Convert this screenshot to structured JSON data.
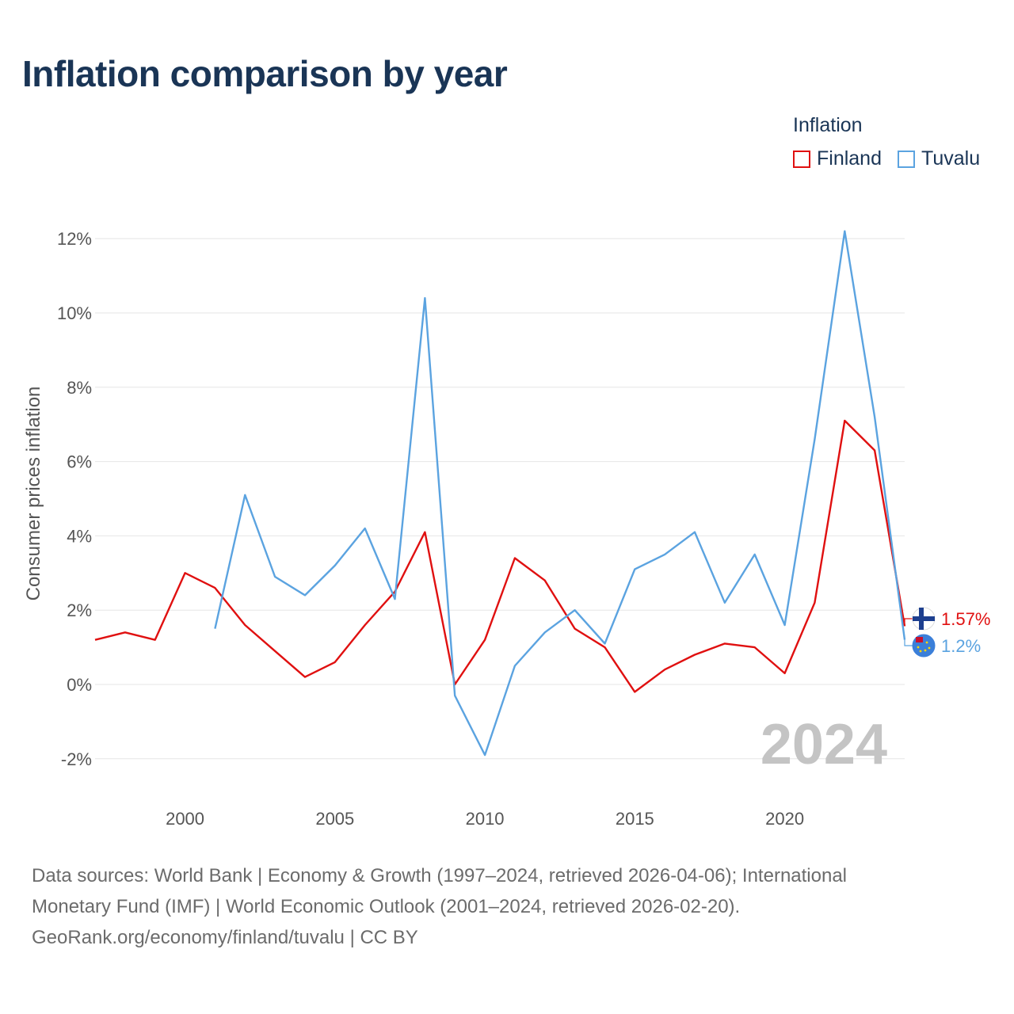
{
  "title": "Inflation comparison by year",
  "legend": {
    "title": "Inflation",
    "items": [
      {
        "name": "Finland",
        "color": "#e01010"
      },
      {
        "name": "Tuvalu",
        "color": "#5ba3e0"
      }
    ]
  },
  "chart_data": {
    "type": "line",
    "title": "Inflation comparison by year",
    "xlabel": "",
    "ylabel": "Consumer prices inflation",
    "xlim": [
      1997,
      2024
    ],
    "ylim": [
      -3,
      13
    ],
    "y_ticks": [
      -2,
      0,
      2,
      4,
      6,
      8,
      10,
      12
    ],
    "y_tick_labels": [
      "-2%",
      "0%",
      "2%",
      "4%",
      "6%",
      "8%",
      "10%",
      "12%"
    ],
    "x_ticks": [
      2000,
      2005,
      2010,
      2015,
      2020
    ],
    "x_tick_labels": [
      "2000",
      "2005",
      "2010",
      "2015",
      "2020"
    ],
    "grid": true,
    "watermark_year": "2024",
    "series": [
      {
        "name": "Finland",
        "color": "#e01010",
        "x": [
          1997,
          1998,
          1999,
          2000,
          2001,
          2002,
          2003,
          2004,
          2005,
          2006,
          2007,
          2008,
          2009,
          2010,
          2011,
          2012,
          2013,
          2014,
          2015,
          2016,
          2017,
          2018,
          2019,
          2020,
          2021,
          2022,
          2023,
          2024
        ],
        "values": [
          1.2,
          1.4,
          1.2,
          3.0,
          2.6,
          1.6,
          0.9,
          0.2,
          0.6,
          1.6,
          2.5,
          4.1,
          0.0,
          1.2,
          3.4,
          2.8,
          1.5,
          1.0,
          -0.2,
          0.4,
          0.8,
          1.1,
          1.0,
          0.3,
          2.2,
          7.1,
          6.3,
          1.57
        ],
        "end_label": "1.57%"
      },
      {
        "name": "Tuvalu",
        "color": "#5ba3e0",
        "x": [
          2001,
          2002,
          2003,
          2004,
          2005,
          2006,
          2007,
          2008,
          2009,
          2010,
          2011,
          2012,
          2013,
          2014,
          2015,
          2016,
          2017,
          2018,
          2019,
          2020,
          2021,
          2022,
          2023,
          2024
        ],
        "values": [
          1.5,
          5.1,
          2.9,
          2.4,
          3.2,
          4.2,
          2.3,
          10.4,
          -0.3,
          -1.9,
          0.5,
          1.4,
          2.0,
          1.1,
          3.1,
          3.5,
          4.1,
          2.2,
          3.5,
          1.6,
          6.6,
          12.2,
          7.2,
          1.2
        ],
        "end_label": "1.2%"
      }
    ]
  },
  "sources": {
    "line1": "Data sources: World Bank | Economy & Growth (1997–2024, retrieved 2026-04-06); International",
    "line2": "Monetary Fund (IMF) | World Economic Outlook (2001–2024, retrieved 2026-02-20).",
    "line3": "GeoRank.org/economy/finland/tuvalu | CC BY"
  }
}
